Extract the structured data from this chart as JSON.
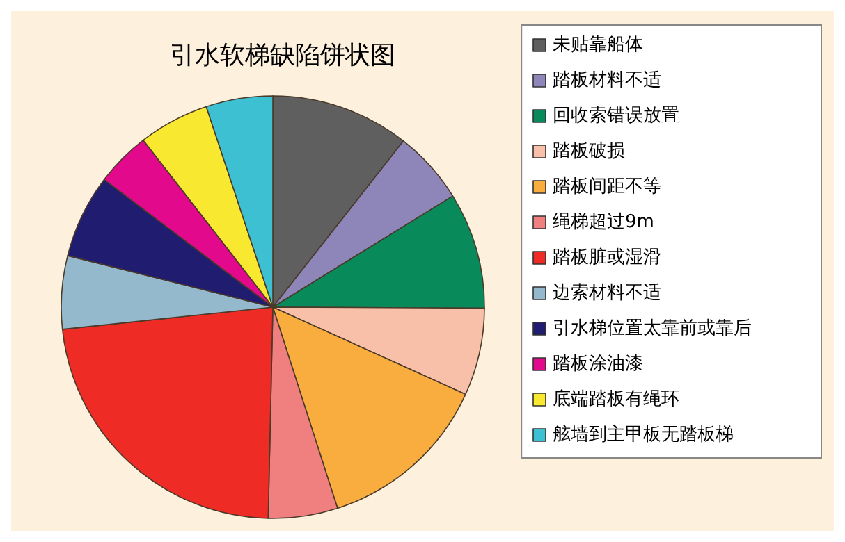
{
  "chart_data": {
    "type": "pie",
    "title": "引水软梯缺陷饼状图",
    "categories": [
      "未贴靠船体",
      "踏板材料不适",
      "回收索错误放置",
      "踏板破损",
      "踏板间距不等",
      "绳梯超过9m",
      "踏板脏或湿滑",
      "边索材料不适",
      "引水梯位置太靠前或靠后",
      "踏板涂油漆",
      "底端踏板有绳环",
      "舷墙到主甲板无踏板梯"
    ],
    "values": [
      10.6,
      5.6,
      8.9,
      6.7,
      13.3,
      5.3,
      23.0,
      5.6,
      6.4,
      4.2,
      5.4,
      5.1
    ],
    "colors": [
      "#5f5f5f",
      "#8e86b8",
      "#088a5a",
      "#f8c0a8",
      "#f9ad3e",
      "#f08080",
      "#ee2b25",
      "#94b8cc",
      "#201c70",
      "#e2098c",
      "#f8e830",
      "#3cc0d2"
    ],
    "legend": "right"
  }
}
